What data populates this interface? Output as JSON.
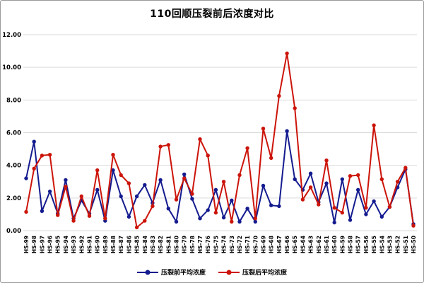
{
  "chart_data": {
    "type": "line",
    "title": "110回顺压裂前后浓度对比",
    "xlabel": "",
    "ylabel": "",
    "ylim": [
      0,
      12
    ],
    "y_ticks": [
      "0.00",
      "2.00",
      "4.00",
      "6.00",
      "8.00",
      "10.00",
      "12.00"
    ],
    "grid": "horizontal",
    "legend_position": "bottom-center",
    "gridline_color": "#d9d9d9",
    "categories": [
      "HS-99",
      "HS-98",
      "HS-97",
      "HS-96",
      "HS-95",
      "HS-94",
      "HS-93",
      "HS-92",
      "HS-91",
      "HS-90",
      "HS-89",
      "HS-88",
      "HS-87",
      "HS-86",
      "HS-85",
      "HS-84",
      "HS-83",
      "HS-82",
      "HS-81",
      "HS-80",
      "HS-79",
      "HS-78",
      "HS-77",
      "HS-76",
      "HS-75",
      "HS-74",
      "HS-73",
      "HS-72",
      "HS-71",
      "HS-70",
      "HS-69",
      "HS-68",
      "HS-67",
      "HS-66",
      "HS-65",
      "HS-64",
      "HS-63",
      "HS-62",
      "HS-61",
      "HS-60",
      "HS-59",
      "HS-58",
      "HS-57",
      "HS-56",
      "HS-55",
      "HS-54",
      "HS-53",
      "HS-52",
      "HS-51",
      "HS-50"
    ],
    "series": [
      {
        "name": "压裂前平均浓度",
        "color": "#141b8f",
        "marker": "circle",
        "values": [
          3.2,
          5.45,
          1.2,
          2.4,
          1.05,
          3.1,
          0.75,
          1.85,
          1.05,
          2.5,
          0.6,
          3.7,
          2.1,
          0.85,
          2.1,
          2.8,
          1.7,
          3.1,
          1.35,
          0.55,
          3.45,
          1.95,
          0.75,
          1.25,
          2.5,
          0.8,
          1.85,
          0.55,
          1.35,
          0.55,
          2.75,
          1.55,
          1.5,
          6.1,
          3.15,
          2.5,
          3.5,
          1.75,
          2.9,
          0.5,
          3.15,
          0.65,
          2.5,
          1.0,
          1.8,
          0.85,
          1.45,
          2.65,
          3.75,
          0.4
        ]
      },
      {
        "name": "压裂后平均浓度",
        "color": "#cc1409",
        "marker": "circle",
        "values": [
          1.15,
          3.8,
          4.6,
          4.65,
          0.95,
          2.7,
          0.6,
          2.1,
          0.9,
          3.7,
          0.75,
          4.65,
          3.4,
          2.9,
          0.2,
          0.6,
          1.5,
          5.15,
          5.25,
          1.9,
          3.2,
          2.25,
          5.6,
          4.6,
          1.1,
          3.0,
          0.55,
          3.4,
          5.05,
          0.75,
          6.25,
          4.45,
          8.25,
          10.85,
          7.5,
          1.9,
          2.65,
          1.6,
          4.3,
          1.4,
          1.1,
          3.35,
          3.4,
          1.4,
          6.45,
          3.15,
          1.45,
          3.0,
          3.85,
          0.3
        ]
      }
    ]
  }
}
